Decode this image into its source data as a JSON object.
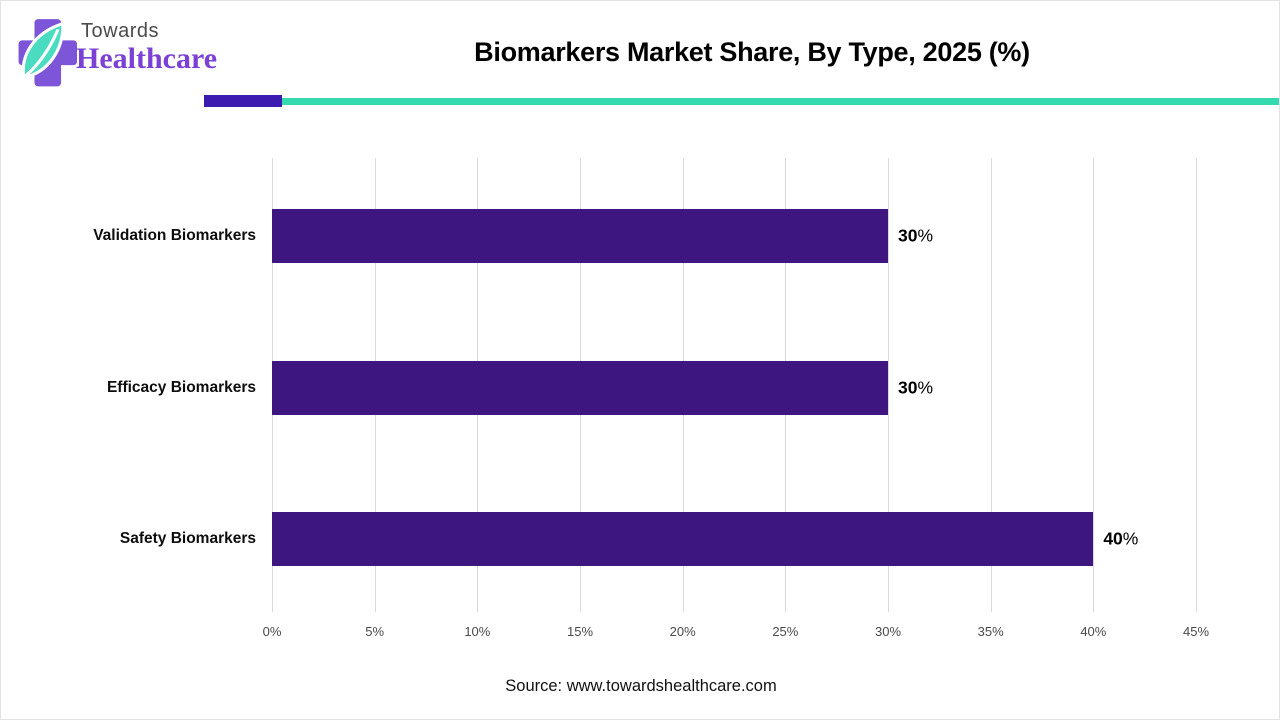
{
  "header": {
    "logo_line1": "Towards",
    "logo_line2": "Healthcare"
  },
  "chart_data": {
    "type": "bar",
    "orientation": "horizontal",
    "title": "Biomarkers Market Share, By Type, 2025 (%)",
    "categories": [
      "Validation Biomarkers",
      "Efficacy Biomarkers",
      "Safety Biomarkers"
    ],
    "values": [
      30,
      30,
      40
    ],
    "value_labels": [
      "30%",
      "30%",
      "40%"
    ],
    "xlabel": "",
    "ylabel": "",
    "xlim": [
      0,
      45
    ],
    "x_tick_values": [
      0,
      5,
      10,
      15,
      20,
      25,
      30,
      35,
      40,
      45
    ],
    "x_ticks": [
      "0%",
      "5%",
      "10%",
      "15%",
      "20%",
      "25%",
      "30%",
      "35%",
      "40%",
      "45%"
    ],
    "grid": "vertical",
    "legend": "none",
    "bar_color": "#3e1680"
  },
  "colors": {
    "bar": "#3e1680",
    "rule_purple": "#3b1bb0",
    "rule_teal": "#34d9ae",
    "gridline": "#d9d9d9",
    "logo_cross": "#7d55d8",
    "logo_leaf": "#4adcc0",
    "logo_text_purple": "#7b40d6"
  },
  "source": {
    "text": "Source: www.towardshealthcare.com"
  }
}
